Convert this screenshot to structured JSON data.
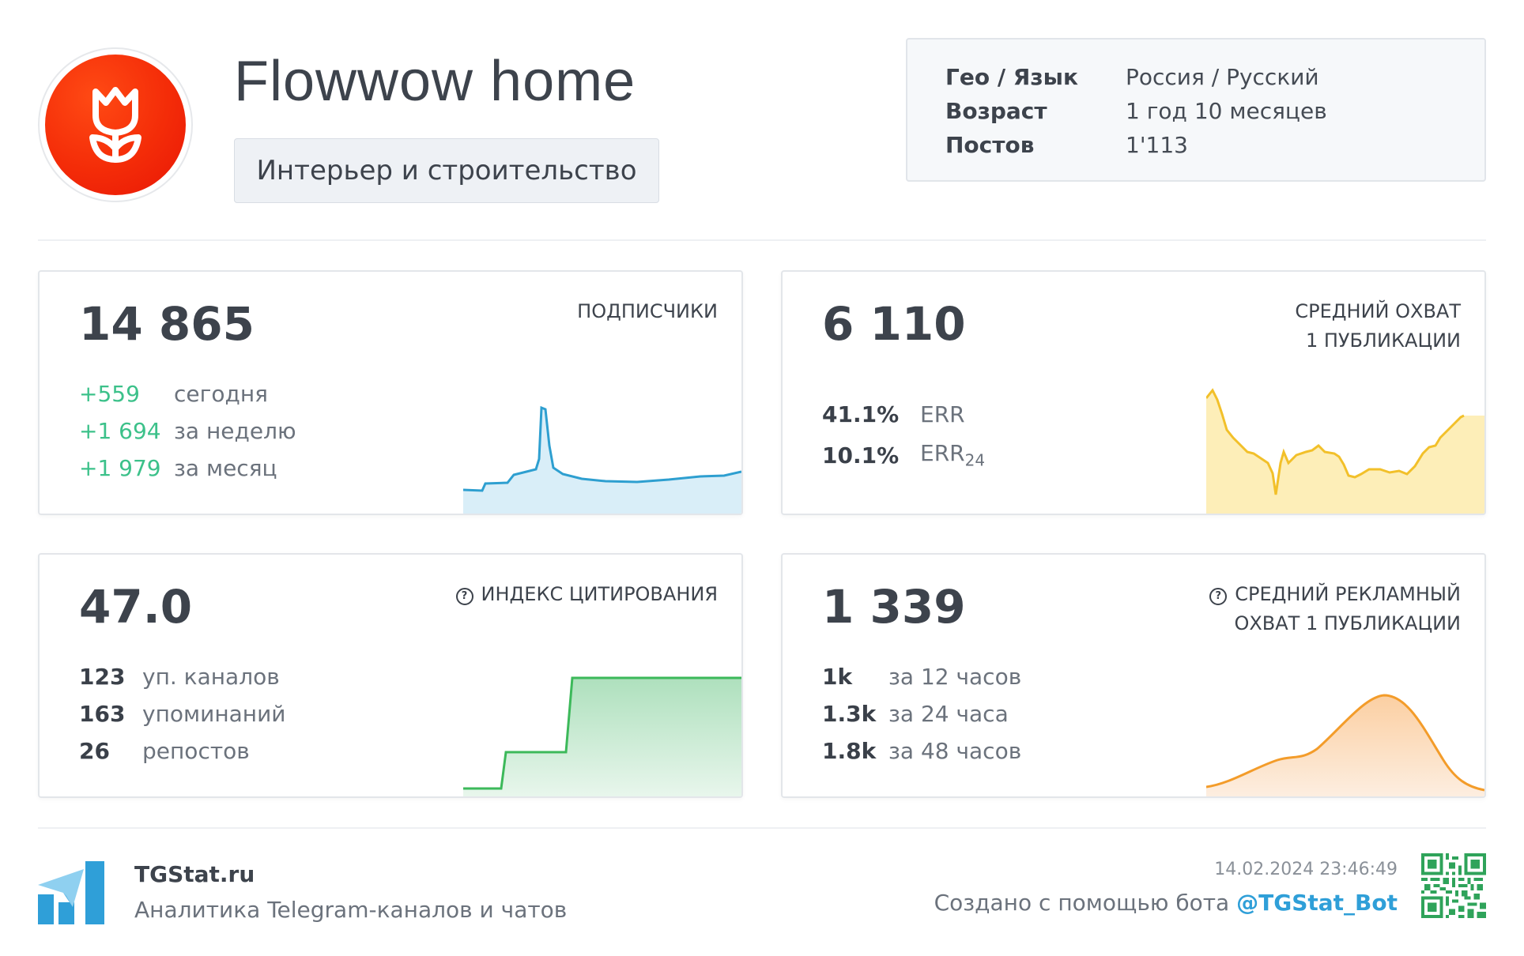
{
  "header": {
    "channel_title": "Flowwow home",
    "category": "Интерьер и строительство",
    "avatar_icon": "tulip-icon",
    "info": [
      {
        "key": "Гео / Язык",
        "value": "Россия / Русский"
      },
      {
        "key": "Возраст",
        "value": "1 год 10 месяцев"
      },
      {
        "key": "Постов",
        "value": "1'113"
      }
    ]
  },
  "cards": {
    "subscribers": {
      "value": "14 865",
      "label": "ПОДПИСЧИКИ",
      "stats": [
        {
          "num": "+559",
          "desc": "сегодня"
        },
        {
          "num": "+1 694",
          "desc": "за неделю"
        },
        {
          "num": "+1 979",
          "desc": "за месяц"
        }
      ],
      "color": "#2e9fd0"
    },
    "avg_reach": {
      "value": "6 110",
      "label_line1": "СРЕДНИЙ ОХВАТ",
      "label_line2": "1 ПУБЛИКАЦИИ",
      "stats": [
        {
          "num": "41.1%",
          "desc": "ERR",
          "sub": ""
        },
        {
          "num": "10.1%",
          "desc": "ERR",
          "sub": "24"
        }
      ],
      "color": "#f2c02a"
    },
    "citation": {
      "value": "47.0",
      "label": "ИНДЕКС ЦИТИРОВАНИЯ",
      "stats": [
        {
          "num": "123",
          "desc": "уп. каналов"
        },
        {
          "num": "163",
          "desc": "упоминаний"
        },
        {
          "num": "26",
          "desc": "репостов"
        }
      ],
      "color": "#3cb95a"
    },
    "ad_reach": {
      "value": "1 339",
      "label_line1": "СРЕДНИЙ РЕКЛАМНЫЙ",
      "label_line2": "ОХВАТ 1 ПУБЛИКАЦИИ",
      "stats": [
        {
          "num": "1k",
          "desc": "за 12 часов"
        },
        {
          "num": "1.3k",
          "desc": "за 24 часа"
        },
        {
          "num": "1.8k",
          "desc": "за 48 часов"
        }
      ],
      "color": "#f39c2a"
    }
  },
  "footer": {
    "brand": "TGStat.ru",
    "tagline": "Аналитика Telegram-каналов и чатов",
    "timestamp": "14.02.2024 23:46:49",
    "created_prefix": "Создано с помощью бота",
    "bot": "@TGStat_Bot",
    "logo_icon": "tgstat-logo-icon",
    "qr_icon": "qr-code-icon",
    "accent": "#2f9fd8"
  }
}
